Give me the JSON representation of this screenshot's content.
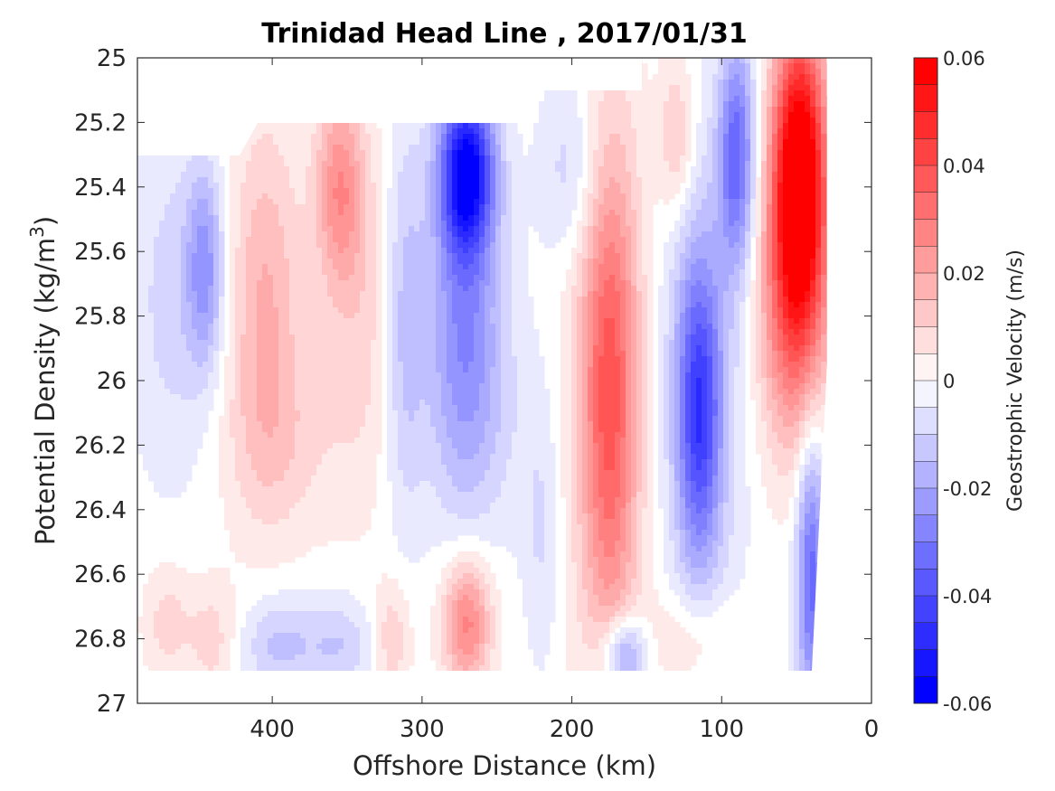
{
  "chart_data": {
    "type": "heatmap",
    "title": "Trinidad Head Line , 2017/01/31",
    "xlabel": "Offshore Distance (km)",
    "ylabel_main": "Potential Density (kg/m",
    "ylabel_sup": "3",
    "ylabel_end": ")",
    "colorbar_label": "Geostrophic Velocity (m/s)",
    "xlim": [
      490,
      0
    ],
    "x_reversed": true,
    "ylim": [
      25,
      27
    ],
    "y_reversed": true,
    "x_ticks": [
      400,
      300,
      200,
      100,
      0
    ],
    "y_ticks": [
      25,
      25.2,
      25.4,
      25.6,
      25.8,
      26,
      26.2,
      26.4,
      26.6,
      26.8,
      27
    ],
    "y_tick_labels": [
      "25",
      "25.2",
      "25.4",
      "25.6",
      "25.8",
      "26",
      "26.2",
      "26.4",
      "26.6",
      "26.8",
      "27"
    ],
    "clim": [
      -0.06,
      0.06
    ],
    "colorbar_ticks": [
      0.06,
      0.04,
      0.02,
      0,
      -0.02,
      -0.04,
      -0.06
    ],
    "colorbar_tick_labels": [
      "0.06",
      "0.04",
      "0.02",
      "0",
      "-0.02",
      "-0.04",
      "-0.06"
    ],
    "colormap": {
      "positive": "#ff0000",
      "zero": "#ffffff",
      "negative": "#0000ff",
      "levels": 24
    },
    "blobs": [
      {
        "x": 465,
        "y": 25.75,
        "v": -0.01,
        "rx": 30,
        "ry": 0.55
      },
      {
        "x": 445,
        "y": 25.65,
        "v": -0.022,
        "rx": 12,
        "ry": 0.3
      },
      {
        "x": 405,
        "y": 25.75,
        "v": 0.018,
        "rx": 24,
        "ry": 0.55
      },
      {
        "x": 395,
        "y": 26.2,
        "v": 0.008,
        "rx": 40,
        "ry": 0.3
      },
      {
        "x": 355,
        "y": 25.4,
        "v": 0.024,
        "rx": 16,
        "ry": 0.3
      },
      {
        "x": 340,
        "y": 25.8,
        "v": 0.01,
        "rx": 28,
        "ry": 0.55
      },
      {
        "x": 312,
        "y": 25.8,
        "v": -0.016,
        "rx": 14,
        "ry": 0.6
      },
      {
        "x": 270,
        "y": 25.35,
        "v": -0.055,
        "rx": 18,
        "ry": 0.25
      },
      {
        "x": 272,
        "y": 25.8,
        "v": -0.025,
        "rx": 24,
        "ry": 0.55
      },
      {
        "x": 255,
        "y": 26.1,
        "v": -0.006,
        "rx": 45,
        "ry": 0.4
      },
      {
        "x": 200,
        "y": 25.35,
        "v": -0.012,
        "rx": 22,
        "ry": 0.3
      },
      {
        "x": 175,
        "y": 26.05,
        "v": 0.03,
        "rx": 18,
        "ry": 0.75
      },
      {
        "x": 175,
        "y": 26.0,
        "v": 0.012,
        "rx": 32,
        "ry": 0.9
      },
      {
        "x": 130,
        "y": 25.25,
        "v": 0.015,
        "rx": 12,
        "ry": 0.25
      },
      {
        "x": 115,
        "y": 26.1,
        "v": -0.035,
        "rx": 14,
        "ry": 0.45
      },
      {
        "x": 115,
        "y": 26.0,
        "v": -0.015,
        "rx": 30,
        "ry": 0.75
      },
      {
        "x": 90,
        "y": 25.3,
        "v": -0.035,
        "rx": 12,
        "ry": 0.35
      },
      {
        "x": 48,
        "y": 25.35,
        "v": 0.07,
        "rx": 18,
        "ry": 0.45
      },
      {
        "x": 52,
        "y": 25.8,
        "v": 0.03,
        "rx": 24,
        "ry": 0.45
      },
      {
        "x": 40,
        "y": 26.6,
        "v": -0.035,
        "rx": 10,
        "ry": 0.45
      },
      {
        "x": 470,
        "y": 26.75,
        "v": 0.01,
        "rx": 16,
        "ry": 0.18
      },
      {
        "x": 440,
        "y": 26.8,
        "v": 0.01,
        "rx": 16,
        "ry": 0.18
      },
      {
        "x": 395,
        "y": 26.82,
        "v": -0.014,
        "rx": 25,
        "ry": 0.15
      },
      {
        "x": 355,
        "y": 26.82,
        "v": -0.012,
        "rx": 22,
        "ry": 0.15
      },
      {
        "x": 320,
        "y": 26.8,
        "v": 0.012,
        "rx": 12,
        "ry": 0.18
      },
      {
        "x": 270,
        "y": 26.75,
        "v": 0.03,
        "rx": 16,
        "ry": 0.2
      },
      {
        "x": 220,
        "y": 26.5,
        "v": -0.008,
        "rx": 12,
        "ry": 0.4
      },
      {
        "x": 165,
        "y": 26.85,
        "v": -0.028,
        "rx": 15,
        "ry": 0.12
      },
      {
        "x": 120,
        "y": 26.8,
        "v": 0.01,
        "rx": 30,
        "ry": 0.15
      }
    ]
  }
}
